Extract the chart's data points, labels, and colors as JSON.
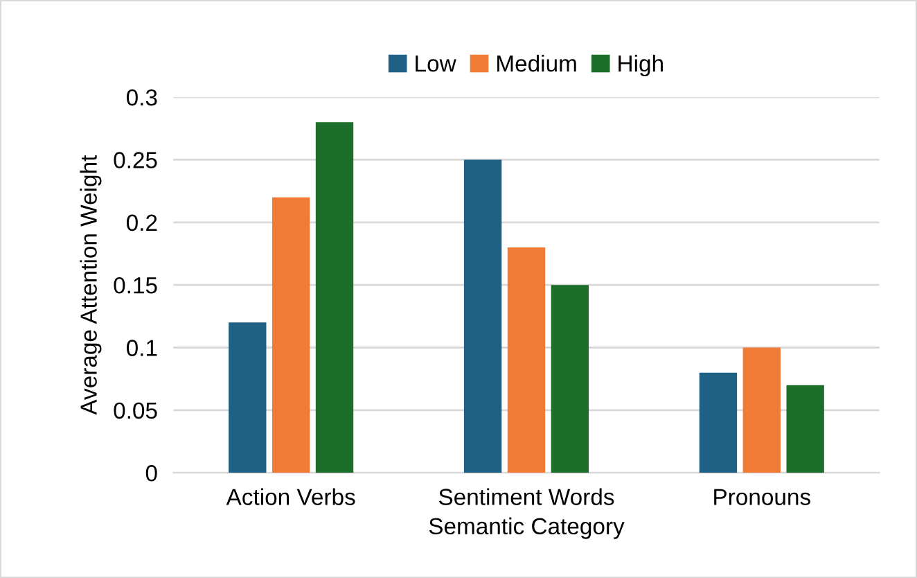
{
  "chart_data": {
    "type": "bar",
    "xlabel": "Semantic Category",
    "ylabel": "Average Attention Weight",
    "categories": [
      "Action Verbs",
      "Sentiment Words",
      "Pronouns"
    ],
    "series": [
      {
        "name": "Low",
        "color": "#1f6185",
        "values": [
          0.12,
          0.25,
          0.08
        ]
      },
      {
        "name": "Medium",
        "color": "#ef7b37",
        "values": [
          0.22,
          0.18,
          0.1
        ]
      },
      {
        "name": "High",
        "color": "#1e6e2b",
        "values": [
          0.28,
          0.15,
          0.07
        ]
      }
    ],
    "ylim": [
      0,
      0.3
    ],
    "yticks": [
      0,
      0.05,
      0.1,
      0.15,
      0.2,
      0.25,
      0.3
    ],
    "grid": "y",
    "legend": "top"
  }
}
